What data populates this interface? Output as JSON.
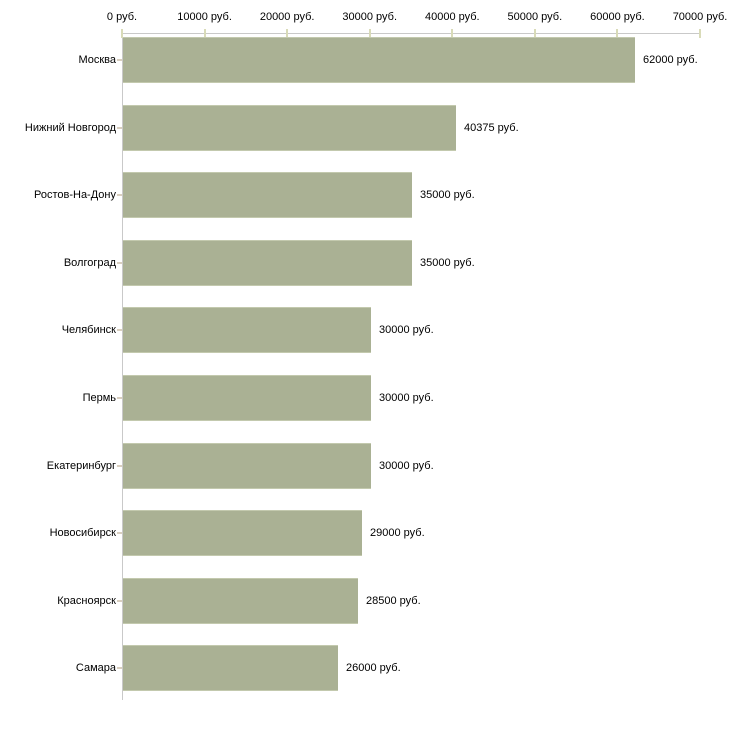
{
  "chart": {
    "background": "#ffffff",
    "bar_color": "#aab194",
    "bar_edge_color": "#c3c9ae",
    "axis_line_color": "#c9c9c9",
    "axis_tick_color": "#d9dbb8",
    "category_tick_color": "#d9cfc0",
    "text_color": "#000000"
  },
  "chart_data": {
    "type": "bar",
    "orientation": "horizontal",
    "title": "",
    "xlabel": "",
    "ylabel": "",
    "unit": "руб.",
    "grid": false,
    "legend": null,
    "xlim": [
      0,
      70000
    ],
    "x_ticks": [
      0,
      10000,
      20000,
      30000,
      40000,
      50000,
      60000,
      70000
    ],
    "x_tick_labels": [
      "0 руб.",
      "10000 руб.",
      "20000 руб.",
      "30000 руб.",
      "40000 руб.",
      "50000 руб.",
      "60000 руб.",
      "70000 руб."
    ],
    "categories": [
      "Москва",
      "Нижний Новгород",
      "Ростов-На-Дону",
      "Волгоград",
      "Челябинск",
      "Пермь",
      "Екатеринбург",
      "Новосибирск",
      "Красноярск",
      "Самара"
    ],
    "values": [
      62000,
      40375,
      35000,
      35000,
      30000,
      30000,
      30000,
      29000,
      28500,
      26000
    ],
    "value_labels": [
      "62000 руб.",
      "40375 руб.",
      "35000 руб.",
      "35000 руб.",
      "30000 руб.",
      "30000 руб.",
      "30000 руб.",
      "29000 руб.",
      "28500 руб.",
      "26000 руб."
    ]
  }
}
